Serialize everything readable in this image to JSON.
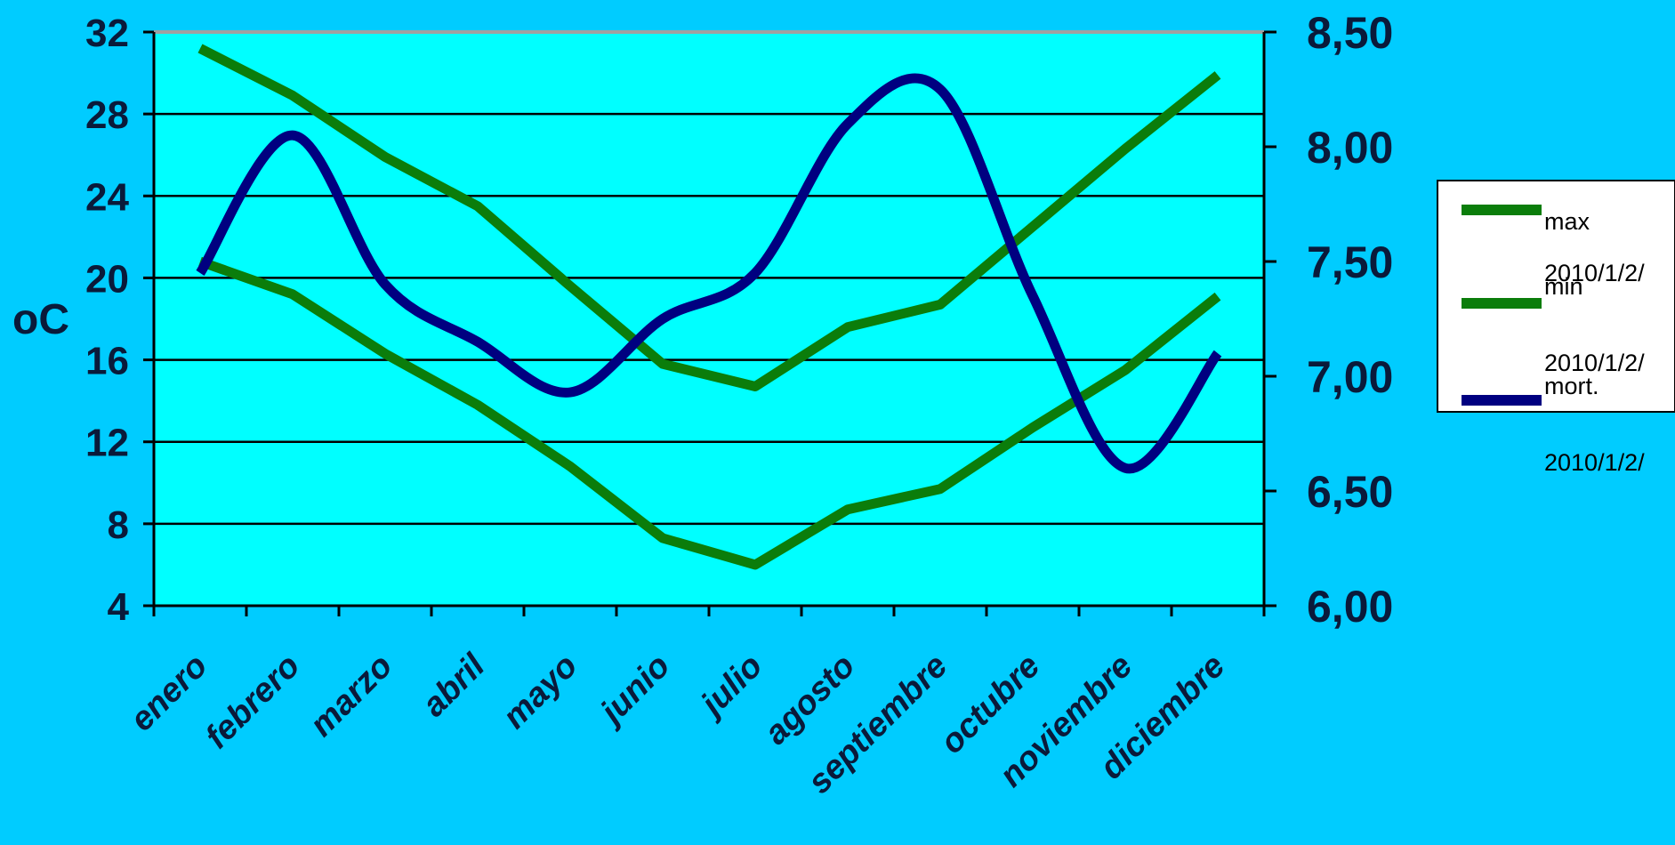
{
  "chart_data": {
    "type": "line",
    "categories": [
      "enero",
      "febrero",
      "marzo",
      "abril",
      "mayo",
      "junio",
      "julio",
      "agosto",
      "septiembre",
      "octubre",
      "noviembre",
      "diciembre"
    ],
    "ylabel": "oC",
    "y_left": {
      "min": 4,
      "max": 32,
      "ticks": [
        "4",
        "8",
        "12",
        "16",
        "20",
        "24",
        "28",
        "32"
      ]
    },
    "y_right": {
      "min": 6.0,
      "max": 8.5,
      "ticks": [
        "6,00",
        "6,50",
        "7,00",
        "7,50",
        "8,00",
        "8,50"
      ]
    },
    "grid": true,
    "legend_position": "right",
    "series": [
      {
        "name": "max",
        "sublabel": "2010/1/2/",
        "axis": "left",
        "color": "#0b7d0b",
        "values": [
          31.2,
          28.9,
          25.9,
          23.5,
          19.6,
          15.8,
          14.7,
          17.6,
          18.7,
          22.5,
          26.3,
          29.9
        ]
      },
      {
        "name": "min",
        "sublabel": "2010/1/2/",
        "axis": "left",
        "color": "#0b7d0b",
        "values": [
          20.8,
          19.2,
          16.3,
          13.8,
          10.8,
          7.3,
          6.0,
          8.7,
          9.7,
          12.7,
          15.5,
          19.1
        ]
      },
      {
        "name": "mort.",
        "sublabel": "2010/1/2/",
        "axis": "right",
        "color": "#000080",
        "smooth": true,
        "values": [
          7.45,
          8.05,
          7.4,
          7.15,
          6.93,
          7.25,
          7.45,
          8.1,
          8.25,
          7.35,
          6.6,
          7.1
        ]
      }
    ]
  },
  "colors": {
    "background": "#00ccff",
    "plot_area": "#00ffff",
    "axis": "#000000",
    "text": "#0a1a3a"
  }
}
